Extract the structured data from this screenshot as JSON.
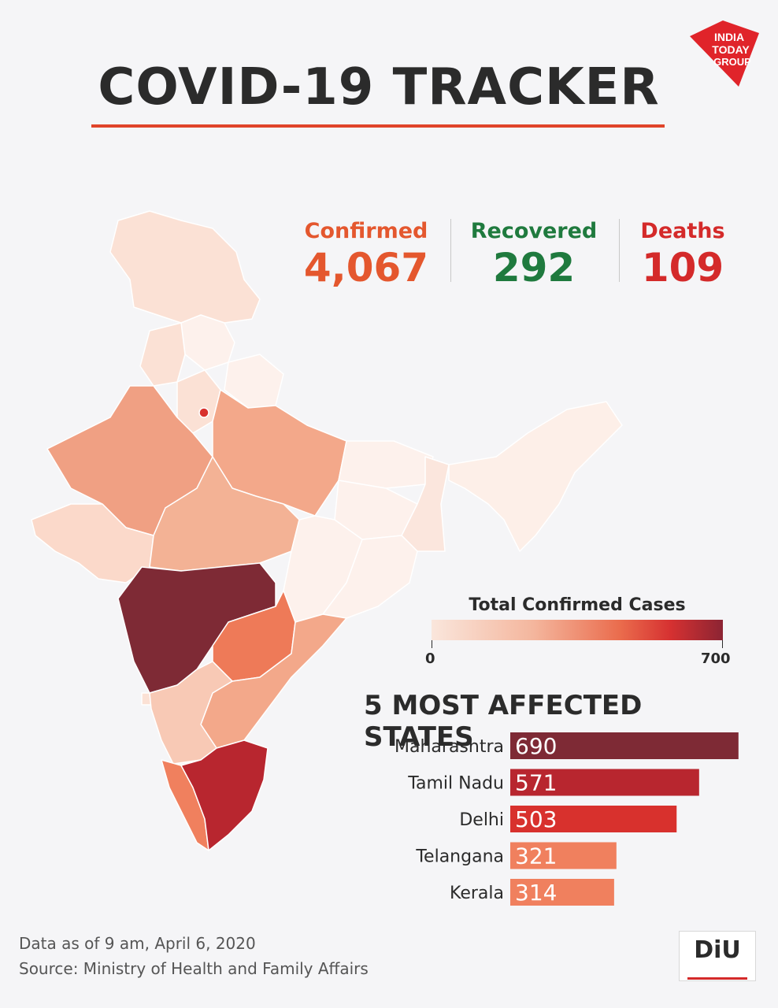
{
  "header": {
    "title": "COVID-19 TRACKER",
    "logo_text": [
      "INDIA",
      "TODAY",
      "GROUP"
    ],
    "logo_color": "#e0242a"
  },
  "stats": {
    "confirmed": {
      "label": "Confirmed",
      "value": "4,067",
      "color": "#e4572e"
    },
    "recovered": {
      "label": "Recovered",
      "value": "292",
      "color": "#1f7a3e"
    },
    "deaths": {
      "label": "Deaths",
      "value": "109",
      "color": "#d42a2a"
    }
  },
  "legend": {
    "title": "Total Confirmed Cases",
    "min_label": "0",
    "max_label": "700",
    "colors": [
      "#fae6dc",
      "#f4b69d",
      "#ea6b4c",
      "#d63131",
      "#8c2433"
    ]
  },
  "chart_data": [
    {
      "type": "bar",
      "orientation": "horizontal",
      "title": "5 MOST AFFECTED STATES",
      "categories": [
        "Maharashtra",
        "Tamil Nadu",
        "Delhi",
        "Telangana",
        "Kerala"
      ],
      "values": [
        690,
        571,
        503,
        321,
        314
      ],
      "value_labels": [
        "690",
        "571",
        "503",
        "321",
        "314"
      ],
      "colors": [
        "#7e2a35",
        "#b8262f",
        "#d8312d",
        "#f0805e",
        "#f0805e"
      ],
      "xlim": [
        0,
        700
      ]
    }
  ],
  "footer": {
    "data_note": "Data as of 9 am, April 6, 2020",
    "source": "Source: Ministry of Health and Family Affairs",
    "badge_text": "DiU"
  }
}
